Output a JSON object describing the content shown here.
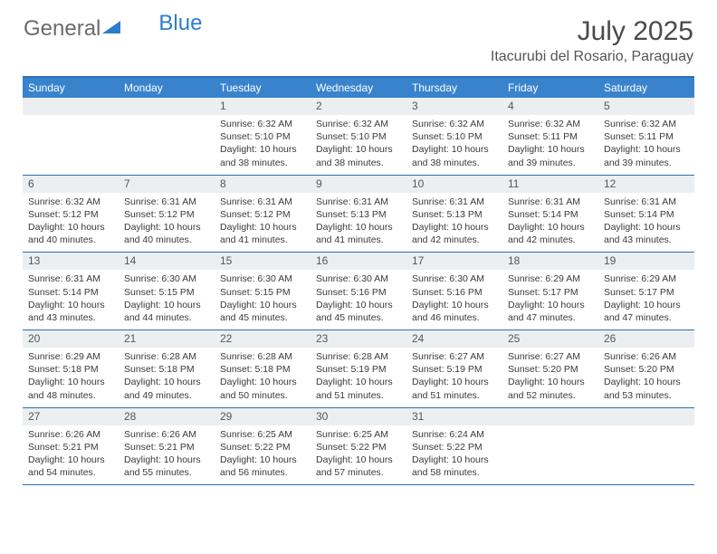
{
  "brand": {
    "part1": "General",
    "part2": "Blue"
  },
  "title": "July 2025",
  "location": "Itacurubi del Rosario, Paraguay",
  "colors": {
    "header_bg": "#3983cc",
    "num_bar_bg": "#eceff1",
    "border": "#2970b8",
    "brand_gray": "#6b6b6b",
    "brand_blue": "#2c7dcb"
  },
  "day_names": [
    "Sunday",
    "Monday",
    "Tuesday",
    "Wednesday",
    "Thursday",
    "Friday",
    "Saturday"
  ],
  "weeks": [
    [
      null,
      null,
      {
        "n": "1",
        "sr": "6:32 AM",
        "ss": "5:10 PM",
        "dl": "10 hours and 38 minutes."
      },
      {
        "n": "2",
        "sr": "6:32 AM",
        "ss": "5:10 PM",
        "dl": "10 hours and 38 minutes."
      },
      {
        "n": "3",
        "sr": "6:32 AM",
        "ss": "5:10 PM",
        "dl": "10 hours and 38 minutes."
      },
      {
        "n": "4",
        "sr": "6:32 AM",
        "ss": "5:11 PM",
        "dl": "10 hours and 39 minutes."
      },
      {
        "n": "5",
        "sr": "6:32 AM",
        "ss": "5:11 PM",
        "dl": "10 hours and 39 minutes."
      }
    ],
    [
      {
        "n": "6",
        "sr": "6:32 AM",
        "ss": "5:12 PM",
        "dl": "10 hours and 40 minutes."
      },
      {
        "n": "7",
        "sr": "6:31 AM",
        "ss": "5:12 PM",
        "dl": "10 hours and 40 minutes."
      },
      {
        "n": "8",
        "sr": "6:31 AM",
        "ss": "5:12 PM",
        "dl": "10 hours and 41 minutes."
      },
      {
        "n": "9",
        "sr": "6:31 AM",
        "ss": "5:13 PM",
        "dl": "10 hours and 41 minutes."
      },
      {
        "n": "10",
        "sr": "6:31 AM",
        "ss": "5:13 PM",
        "dl": "10 hours and 42 minutes."
      },
      {
        "n": "11",
        "sr": "6:31 AM",
        "ss": "5:14 PM",
        "dl": "10 hours and 42 minutes."
      },
      {
        "n": "12",
        "sr": "6:31 AM",
        "ss": "5:14 PM",
        "dl": "10 hours and 43 minutes."
      }
    ],
    [
      {
        "n": "13",
        "sr": "6:31 AM",
        "ss": "5:14 PM",
        "dl": "10 hours and 43 minutes."
      },
      {
        "n": "14",
        "sr": "6:30 AM",
        "ss": "5:15 PM",
        "dl": "10 hours and 44 minutes."
      },
      {
        "n": "15",
        "sr": "6:30 AM",
        "ss": "5:15 PM",
        "dl": "10 hours and 45 minutes."
      },
      {
        "n": "16",
        "sr": "6:30 AM",
        "ss": "5:16 PM",
        "dl": "10 hours and 45 minutes."
      },
      {
        "n": "17",
        "sr": "6:30 AM",
        "ss": "5:16 PM",
        "dl": "10 hours and 46 minutes."
      },
      {
        "n": "18",
        "sr": "6:29 AM",
        "ss": "5:17 PM",
        "dl": "10 hours and 47 minutes."
      },
      {
        "n": "19",
        "sr": "6:29 AM",
        "ss": "5:17 PM",
        "dl": "10 hours and 47 minutes."
      }
    ],
    [
      {
        "n": "20",
        "sr": "6:29 AM",
        "ss": "5:18 PM",
        "dl": "10 hours and 48 minutes."
      },
      {
        "n": "21",
        "sr": "6:28 AM",
        "ss": "5:18 PM",
        "dl": "10 hours and 49 minutes."
      },
      {
        "n": "22",
        "sr": "6:28 AM",
        "ss": "5:18 PM",
        "dl": "10 hours and 50 minutes."
      },
      {
        "n": "23",
        "sr": "6:28 AM",
        "ss": "5:19 PM",
        "dl": "10 hours and 51 minutes."
      },
      {
        "n": "24",
        "sr": "6:27 AM",
        "ss": "5:19 PM",
        "dl": "10 hours and 51 minutes."
      },
      {
        "n": "25",
        "sr": "6:27 AM",
        "ss": "5:20 PM",
        "dl": "10 hours and 52 minutes."
      },
      {
        "n": "26",
        "sr": "6:26 AM",
        "ss": "5:20 PM",
        "dl": "10 hours and 53 minutes."
      }
    ],
    [
      {
        "n": "27",
        "sr": "6:26 AM",
        "ss": "5:21 PM",
        "dl": "10 hours and 54 minutes."
      },
      {
        "n": "28",
        "sr": "6:26 AM",
        "ss": "5:21 PM",
        "dl": "10 hours and 55 minutes."
      },
      {
        "n": "29",
        "sr": "6:25 AM",
        "ss": "5:22 PM",
        "dl": "10 hours and 56 minutes."
      },
      {
        "n": "30",
        "sr": "6:25 AM",
        "ss": "5:22 PM",
        "dl": "10 hours and 57 minutes."
      },
      {
        "n": "31",
        "sr": "6:24 AM",
        "ss": "5:22 PM",
        "dl": "10 hours and 58 minutes."
      },
      null,
      null
    ]
  ],
  "labels": {
    "sunrise": "Sunrise:",
    "sunset": "Sunset:",
    "daylight": "Daylight:"
  }
}
